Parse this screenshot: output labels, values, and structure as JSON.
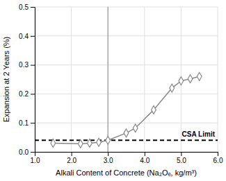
{
  "chart_data": {
    "type": "line",
    "x": [
      1.5,
      2.25,
      2.5,
      2.75,
      3.0,
      3.5,
      3.75,
      4.25,
      4.75,
      5.0,
      5.25,
      5.5
    ],
    "values": [
      0.03,
      0.028,
      0.03,
      0.033,
      0.04,
      0.065,
      0.082,
      0.145,
      0.22,
      0.245,
      0.252,
      0.26
    ],
    "color": "#888888",
    "marker": "diamond",
    "xlabel": "Alkali Content of Concrete (Na₂Oₑ, kg/m³)",
    "ylabel": "Expansion at 2 Years (%)",
    "xlim": [
      1.0,
      6.0
    ],
    "ylim": [
      0.0,
      0.5
    ],
    "xticks": [
      {
        "value": 1,
        "label": "1.0"
      },
      {
        "value": 2,
        "label": "2.0"
      },
      {
        "value": 3,
        "label": "3.0"
      },
      {
        "value": 4,
        "label": "4.0"
      },
      {
        "value": 5,
        "label": "5.0"
      },
      {
        "value": 6,
        "label": "6.0"
      }
    ],
    "yticks": [
      {
        "value": 0,
        "label": "0.0"
      },
      0.1,
      0.2,
      0.3,
      0.4,
      0.5
    ],
    "grid": true,
    "reference_lines": [
      {
        "axis": "y",
        "value": 0.04,
        "label": "CSA Limit",
        "color": "black",
        "line_style": "dashed"
      },
      {
        "axis": "x",
        "value": 3.0,
        "color": "#888888",
        "line_style": "solid"
      }
    ]
  }
}
